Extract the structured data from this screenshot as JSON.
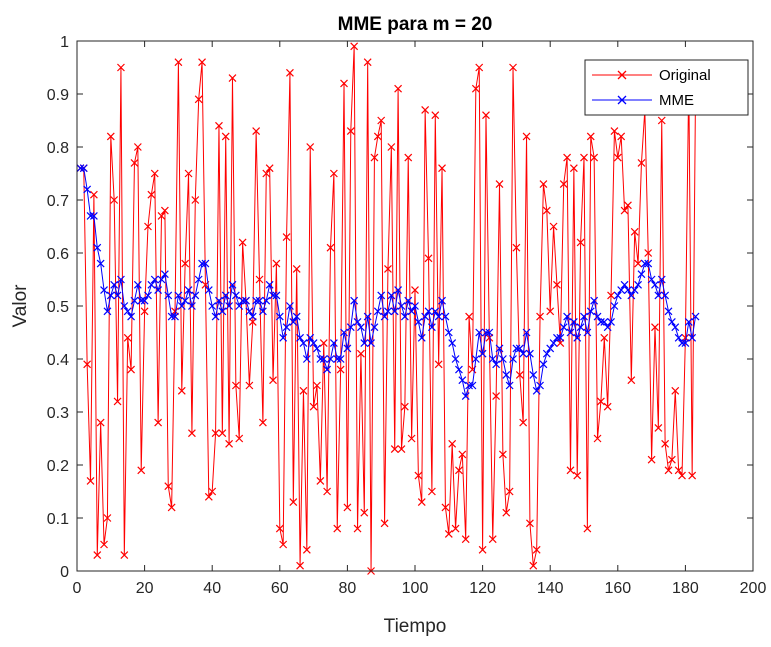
{
  "chart_data": {
    "type": "line",
    "title": "MME para m = 20",
    "xlabel": "Tiempo",
    "ylabel": "Valor",
    "xlim": [
      0,
      200
    ],
    "ylim": [
      0,
      1
    ],
    "x_ticks": [
      0,
      20,
      40,
      60,
      80,
      100,
      120,
      140,
      160,
      180,
      200
    ],
    "y_ticks": [
      0,
      0.1,
      0.2,
      0.3,
      0.4,
      0.5,
      0.6,
      0.7,
      0.8,
      0.9,
      1
    ],
    "x_tick_labels": [
      "0",
      "20",
      "40",
      "60",
      "80",
      "100",
      "120",
      "140",
      "160",
      "180",
      "200"
    ],
    "y_tick_labels": [
      "0",
      "0.1",
      "0.2",
      "0.3",
      "0.4",
      "0.5",
      "0.6",
      "0.7",
      "0.8",
      "0.9",
      "1"
    ],
    "grid": false,
    "legend_position": "top-right",
    "marker": "x",
    "series": [
      {
        "name": "Original",
        "color": "#ff0000",
        "y": [
          0.76,
          0.76,
          0.39,
          0.17,
          0.71,
          0.03,
          0.28,
          0.05,
          0.1,
          0.82,
          0.7,
          0.32,
          0.95,
          0.03,
          0.44,
          0.38,
          0.77,
          0.8,
          0.19,
          0.49,
          0.65,
          0.71,
          0.75,
          0.28,
          0.67,
          0.68,
          0.16,
          0.12,
          0.49,
          0.96,
          0.34,
          0.58,
          0.75,
          0.26,
          0.7,
          0.89,
          0.96,
          0.54,
          0.14,
          0.15,
          0.26,
          0.84,
          0.26,
          0.82,
          0.24,
          0.93,
          0.35,
          0.25,
          0.62,
          0.51,
          0.35,
          0.47,
          0.83,
          0.55,
          0.28,
          0.75,
          0.76,
          0.36,
          0.58,
          0.08,
          0.05,
          0.63,
          0.94,
          0.13,
          0.57,
          0.01,
          0.34,
          0.04,
          0.8,
          0.31,
          0.35,
          0.17,
          0.43,
          0.15,
          0.61,
          0.75,
          0.08,
          0.38,
          0.92,
          0.12,
          0.83,
          0.99,
          0.08,
          0.41,
          0.11,
          0.96,
          0.0,
          0.78,
          0.82,
          0.85,
          0.09,
          0.57,
          0.8,
          0.23,
          0.91,
          0.23,
          0.31,
          0.78,
          0.25,
          0.53,
          0.18,
          0.13,
          0.87,
          0.59,
          0.15,
          0.86,
          0.39,
          0.76,
          0.12,
          0.07,
          0.24,
          0.08,
          0.19,
          0.22,
          0.06,
          0.48,
          0.38,
          0.91,
          0.95,
          0.04,
          0.86,
          0.44,
          0.06,
          0.33,
          0.73,
          0.22,
          0.11,
          0.15,
          0.95,
          0.61,
          0.37,
          0.28,
          0.82,
          0.09,
          0.01,
          0.04,
          0.48,
          0.73,
          0.68,
          0.49,
          0.65,
          0.54,
          0.43,
          0.73,
          0.78,
          0.19,
          0.76,
          0.18,
          0.62,
          0.78,
          0.08,
          0.82,
          0.78,
          0.25,
          0.32,
          0.44,
          0.31,
          0.52,
          0.83,
          0.78,
          0.82,
          0.68,
          0.69,
          0.36,
          0.64,
          0.58,
          0.77,
          0.87,
          0.6,
          0.21,
          0.46,
          0.27,
          0.85,
          0.24,
          0.19,
          0.21,
          0.34,
          0.19,
          0.18,
          0.44,
          0.93,
          0.18,
          0.91
        ]
      },
      {
        "name": "MME",
        "color": "#0000ff",
        "y": [
          0.76,
          0.76,
          0.72,
          0.67,
          0.67,
          0.61,
          0.58,
          0.53,
          0.49,
          0.52,
          0.54,
          0.52,
          0.55,
          0.5,
          0.49,
          0.48,
          0.51,
          0.54,
          0.51,
          0.51,
          0.52,
          0.54,
          0.55,
          0.53,
          0.55,
          0.56,
          0.52,
          0.48,
          0.48,
          0.52,
          0.5,
          0.51,
          0.53,
          0.5,
          0.52,
          0.55,
          0.58,
          0.58,
          0.53,
          0.5,
          0.48,
          0.51,
          0.49,
          0.52,
          0.5,
          0.54,
          0.52,
          0.5,
          0.51,
          0.51,
          0.49,
          0.48,
          0.51,
          0.51,
          0.49,
          0.51,
          0.54,
          0.52,
          0.52,
          0.48,
          0.44,
          0.46,
          0.5,
          0.47,
          0.48,
          0.44,
          0.43,
          0.4,
          0.44,
          0.43,
          0.42,
          0.4,
          0.4,
          0.38,
          0.4,
          0.43,
          0.4,
          0.4,
          0.45,
          0.42,
          0.46,
          0.51,
          0.47,
          0.46,
          0.43,
          0.48,
          0.43,
          0.46,
          0.49,
          0.52,
          0.48,
          0.49,
          0.52,
          0.49,
          0.53,
          0.5,
          0.48,
          0.51,
          0.49,
          0.5,
          0.47,
          0.44,
          0.48,
          0.49,
          0.46,
          0.49,
          0.48,
          0.51,
          0.48,
          0.45,
          0.43,
          0.4,
          0.38,
          0.36,
          0.33,
          0.35,
          0.35,
          0.4,
          0.45,
          0.41,
          0.45,
          0.45,
          0.4,
          0.39,
          0.42,
          0.4,
          0.37,
          0.35,
          0.4,
          0.42,
          0.42,
          0.41,
          0.45,
          0.41,
          0.37,
          0.34,
          0.35,
          0.39,
          0.41,
          0.42,
          0.43,
          0.44,
          0.44,
          0.46,
          0.48,
          0.45,
          0.47,
          0.44,
          0.46,
          0.48,
          0.45,
          0.49,
          0.51,
          0.48,
          0.47,
          0.47,
          0.46,
          0.47,
          0.5,
          0.52,
          0.53,
          0.54,
          0.53,
          0.52,
          0.53,
          0.54,
          0.56,
          0.58,
          0.58,
          0.55,
          0.54,
          0.52,
          0.55,
          0.52,
          0.49,
          0.47,
          0.46,
          0.44,
          0.43,
          0.43,
          0.47,
          0.44,
          0.48
        ]
      }
    ]
  }
}
